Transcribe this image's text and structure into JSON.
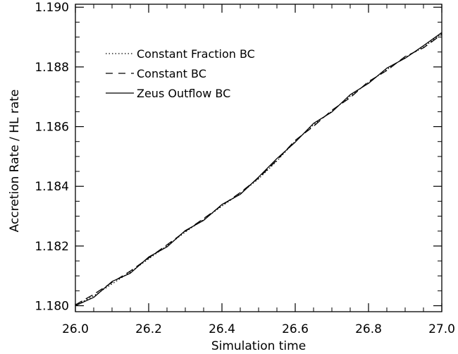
{
  "chart_data": {
    "type": "line",
    "title": "",
    "xlabel": "Simulation time",
    "ylabel": "Accretion Rate / HL rate",
    "xlim": [
      26.0,
      27.0
    ],
    "ylim": [
      1.1798,
      1.1901
    ],
    "xticks": [
      26.0,
      26.2,
      26.4,
      26.6,
      26.8,
      27.0
    ],
    "xtick_labels": [
      "26.0",
      "26.2",
      "26.4",
      "26.6",
      "26.8",
      "27.0"
    ],
    "yticks": [
      1.18,
      1.182,
      1.184,
      1.186,
      1.188,
      1.19
    ],
    "ytick_labels": [
      "1.180",
      "1.182",
      "1.184",
      "1.186",
      "1.188",
      "1.190"
    ],
    "grid": false,
    "legend_position": "top-left",
    "series": [
      {
        "name": "Constant Fraction BC",
        "style": "dotted",
        "x": [
          26.0,
          26.05,
          26.1,
          26.15,
          26.2,
          26.25,
          26.3,
          26.35,
          26.4,
          26.45,
          26.5,
          26.55,
          26.6,
          26.65,
          26.7,
          26.75,
          26.8,
          26.85,
          26.9,
          26.95,
          27.0
        ],
        "y": [
          1.18001,
          1.18033,
          1.18073,
          1.18113,
          1.18157,
          1.18201,
          1.18247,
          1.18289,
          1.18334,
          1.18376,
          1.18425,
          1.18485,
          1.18551,
          1.18606,
          1.18652,
          1.18702,
          1.18748,
          1.18791,
          1.18832,
          1.18866,
          1.18912
        ]
      },
      {
        "name": "Constant BC",
        "style": "dashed",
        "x": [
          26.0,
          26.05,
          26.1,
          26.15,
          26.2,
          26.25,
          26.3,
          26.35,
          26.4,
          26.45,
          26.5,
          26.55,
          26.6,
          26.65,
          26.7,
          26.75,
          26.8,
          26.85,
          26.9,
          26.95,
          27.0
        ],
        "y": [
          1.18003,
          1.18038,
          1.18078,
          1.18116,
          1.1816,
          1.18204,
          1.18249,
          1.18292,
          1.18336,
          1.18379,
          1.18428,
          1.18488,
          1.18554,
          1.18601,
          1.18655,
          1.18697,
          1.18751,
          1.18788,
          1.18835,
          1.18864,
          1.18909
        ]
      },
      {
        "name": "Zeus Outflow BC",
        "style": "solid",
        "x": [
          26.0,
          26.05,
          26.1,
          26.15,
          26.2,
          26.25,
          26.3,
          26.35,
          26.4,
          26.45,
          26.5,
          26.55,
          26.6,
          26.65,
          26.7,
          26.75,
          26.8,
          26.85,
          26.9,
          26.95,
          27.0
        ],
        "y": [
          1.18,
          1.18028,
          1.18081,
          1.18109,
          1.18163,
          1.18197,
          1.18252,
          1.18286,
          1.18339,
          1.18373,
          1.18431,
          1.18493,
          1.18548,
          1.18611,
          1.18649,
          1.18707,
          1.18745,
          1.18796,
          1.18829,
          1.18871,
          1.18915
        ]
      }
    ]
  }
}
